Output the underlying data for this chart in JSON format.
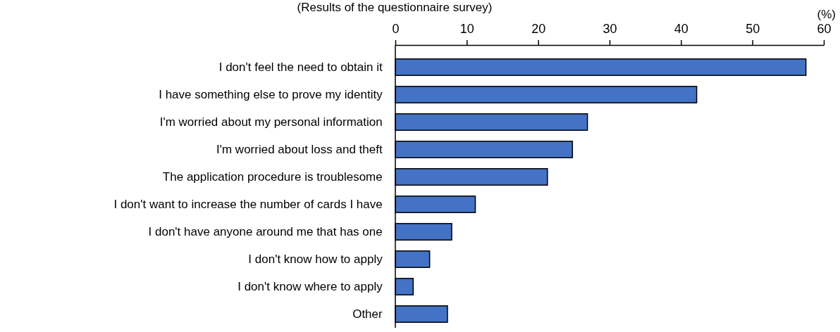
{
  "chart_data": {
    "type": "bar",
    "orientation": "horizontal",
    "subtitle": "(Results of the questionnaire survey)",
    "xlabel": "(%)",
    "categories": [
      "I don't feel the need to obtain it",
      "I have something else to prove my identity",
      "I'm worried about my personal information",
      "I'm worried about loss and theft",
      "The application procedure is troublesome",
      "I don't want to increase the number of cards I have",
      "I don't have anyone around me that has one",
      "I don't know how to apply",
      "I don't know where to apply",
      "Other"
    ],
    "values": [
      57.5,
      42.2,
      26.9,
      24.8,
      21.3,
      11.2,
      7.9,
      4.8,
      2.5,
      7.3
    ],
    "color": "#4472c4",
    "xlim": [
      0,
      60
    ],
    "xticks": [
      0,
      10,
      20,
      30,
      40,
      50,
      60
    ],
    "grid": false
  }
}
